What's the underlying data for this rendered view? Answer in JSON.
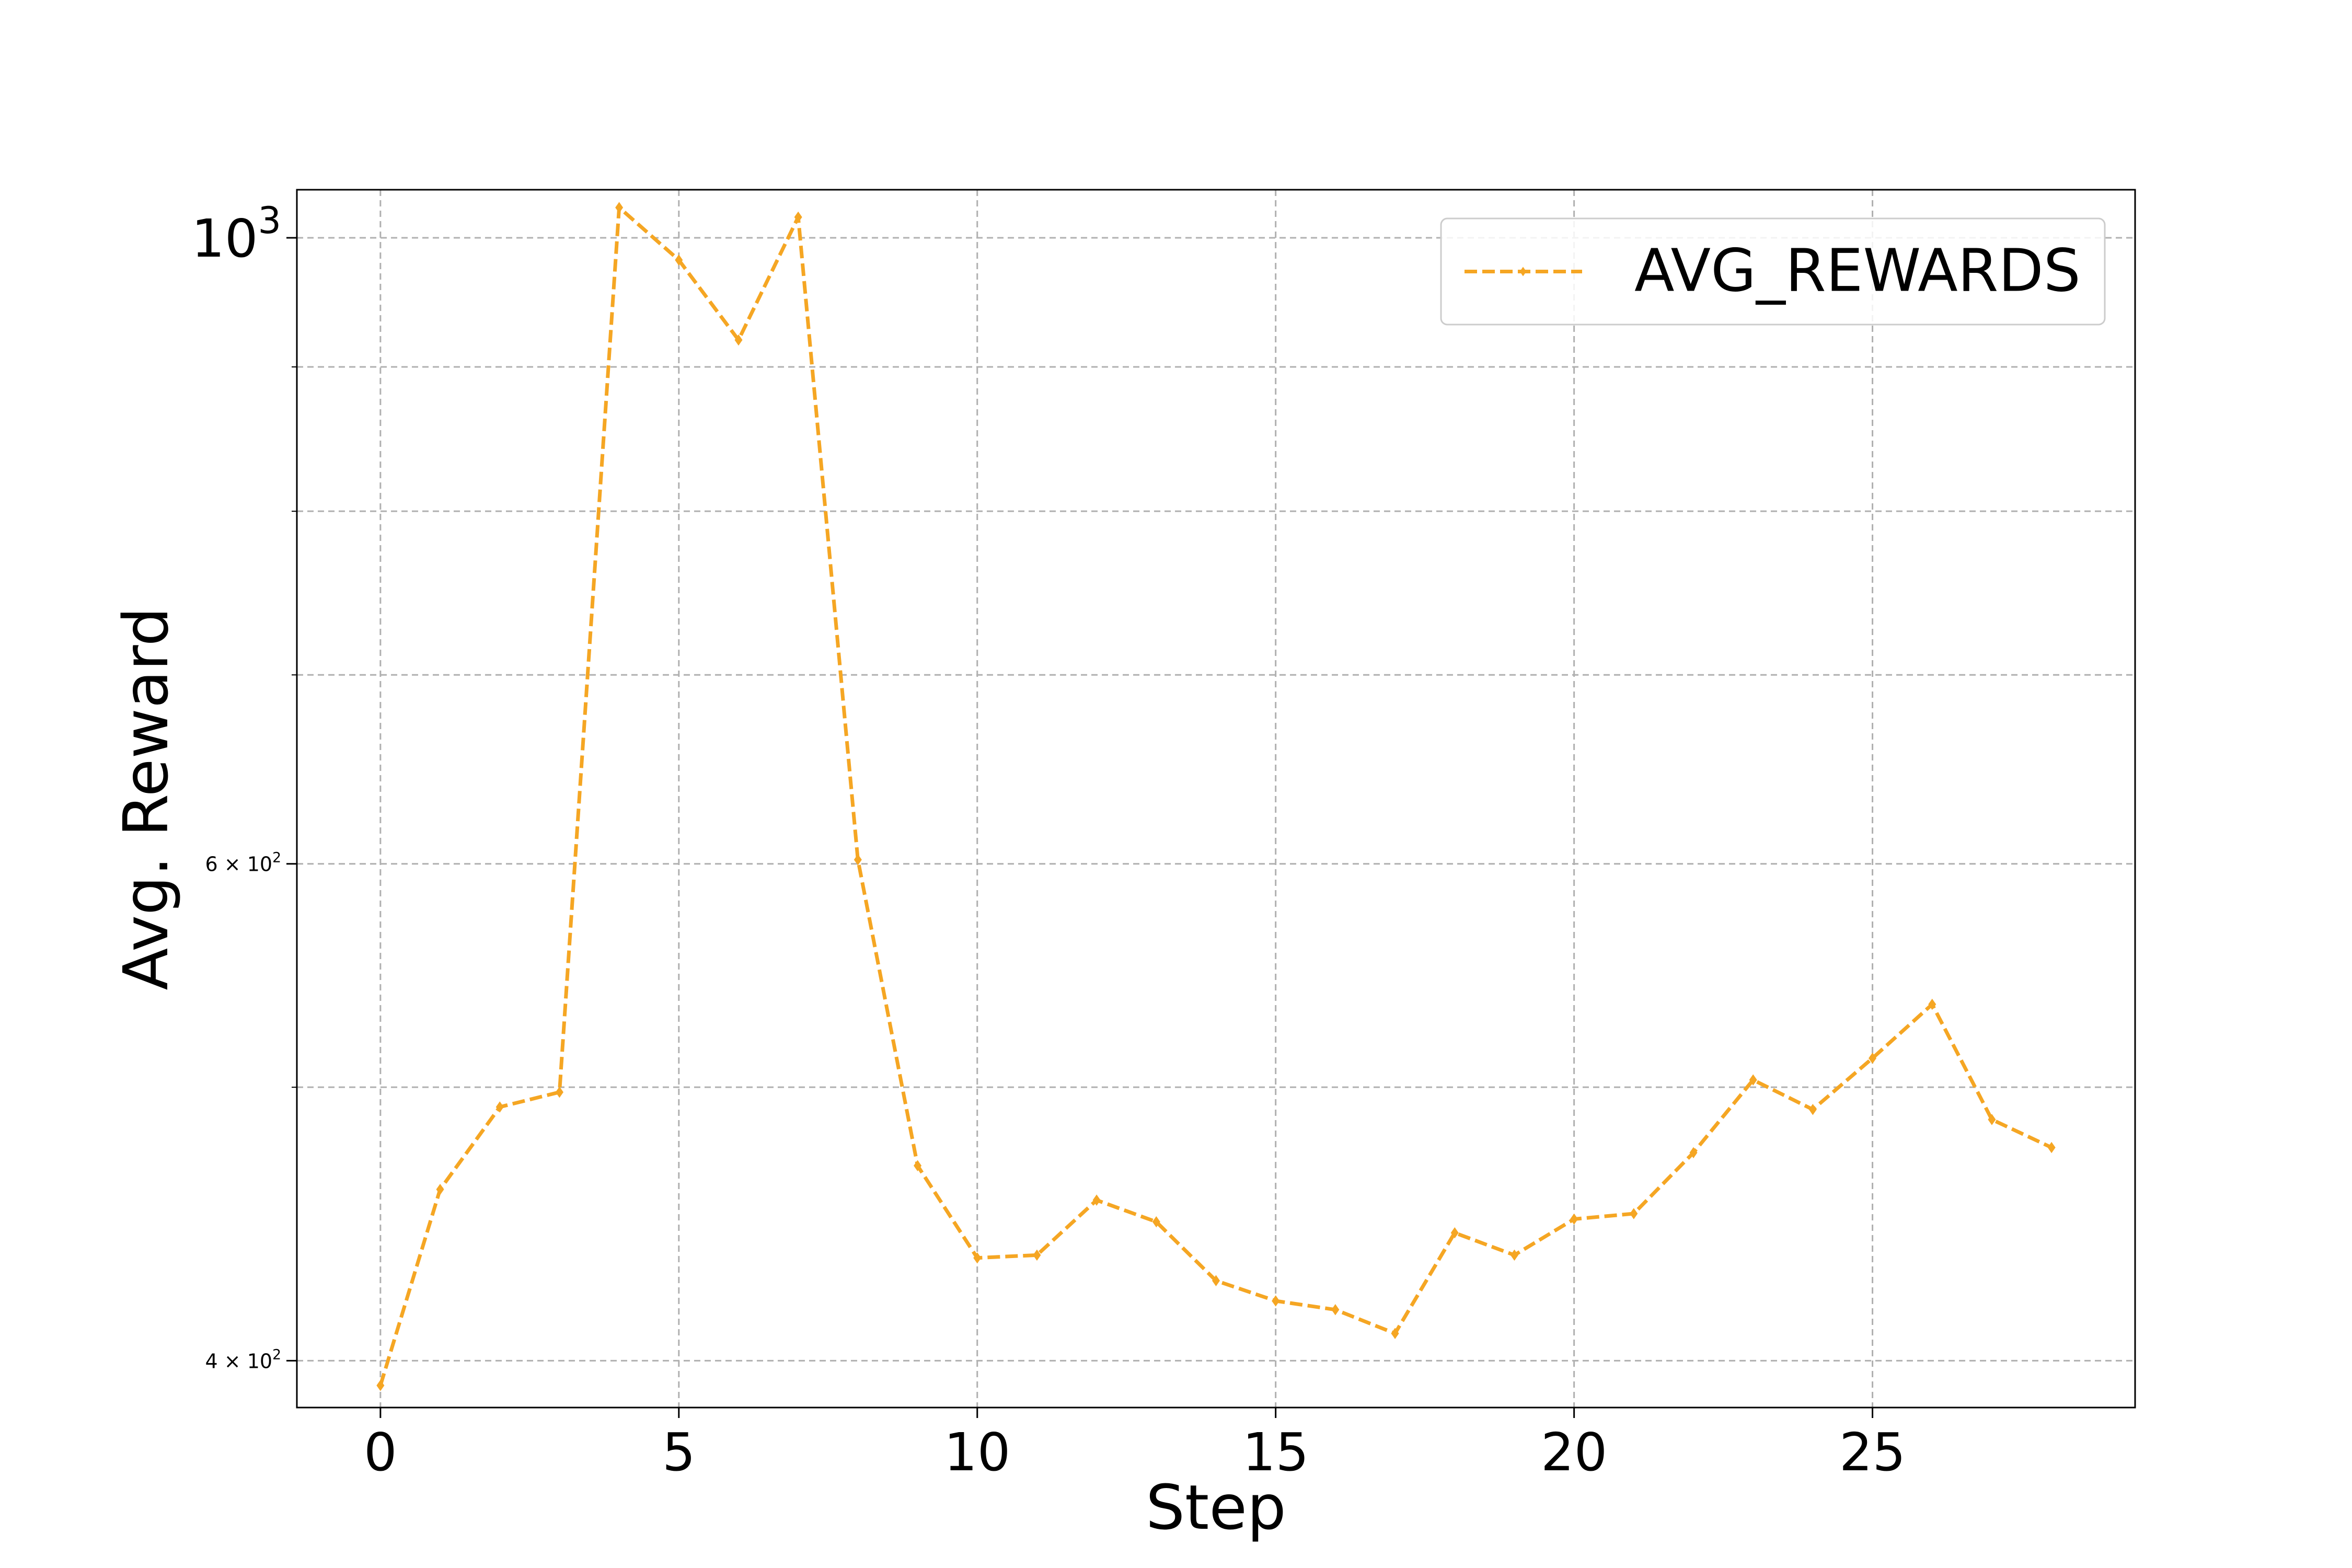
{
  "colors": {
    "series": "#f5a623",
    "grid": "#b0b0b0",
    "axis": "#000000",
    "legend_border": "#cccccc"
  },
  "chart_data": {
    "type": "line",
    "title": "",
    "xlabel": "Step",
    "ylabel": "Avg. Reward",
    "xlim": [
      -1.4,
      29.4
    ],
    "ylim": [
      385,
      1040
    ],
    "yscale": "log",
    "grid": true,
    "legend_position": "top-right",
    "x_ticks": [
      0,
      5,
      10,
      15,
      20,
      25
    ],
    "x_tick_labels": [
      "0",
      "5",
      "10",
      "15",
      "20",
      "25"
    ],
    "y_ticks": [
      {
        "value": 400,
        "base": "4",
        "mant": "10",
        "exp": "2"
      },
      {
        "value": 600,
        "base": "6",
        "mant": "10",
        "exp": "2"
      },
      {
        "value": 1000,
        "base": "",
        "mant": "10",
        "exp": "3"
      }
    ],
    "y_minor_ticks": [
      500,
      700,
      800,
      900
    ],
    "series": [
      {
        "name": "AVG_REWARDS",
        "line_style": "dashed",
        "marker": "diamond",
        "x": [
          0,
          1,
          2,
          3,
          4,
          5,
          6,
          7,
          8,
          9,
          10,
          11,
          12,
          13,
          14,
          15,
          16,
          17,
          18,
          19,
          20,
          21,
          22,
          23,
          24,
          25,
          26,
          27,
          28
        ],
        "values": [
          392,
          460,
          492,
          498,
          1025,
          982,
          920,
          1017,
          602,
          469,
          435,
          436,
          456,
          448,
          427,
          420,
          417,
          409,
          444,
          436,
          449,
          451,
          474,
          503,
          491,
          512,
          535,
          487,
          476
        ]
      }
    ]
  }
}
